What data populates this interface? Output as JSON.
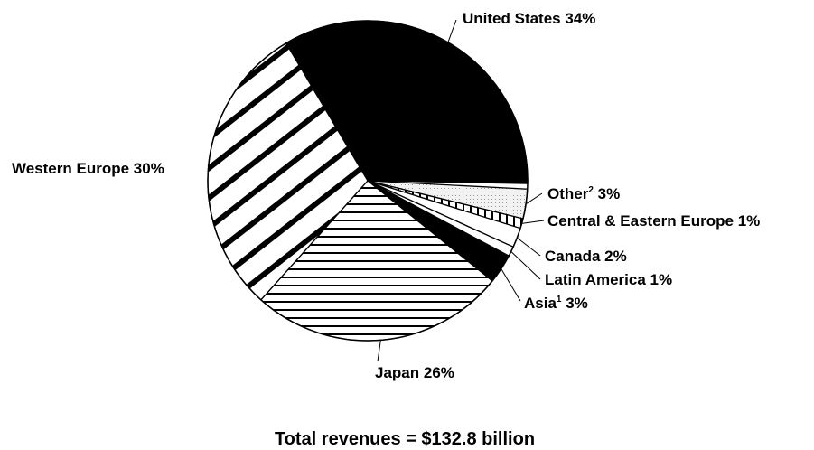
{
  "chart_data": {
    "type": "pie",
    "slices": [
      {
        "key": "us",
        "label": "United States",
        "value": 34,
        "value_label": "34%",
        "sup": "",
        "fill": "#000000",
        "pattern": "solid"
      },
      {
        "key": "other",
        "label": "Other",
        "value": 3,
        "value_label": "3%",
        "sup": "2",
        "fill": "#f4f4f4",
        "pattern": "dots"
      },
      {
        "key": "cee",
        "label": "Central & Eastern Europe",
        "value": 1,
        "value_label": "1%",
        "sup": "",
        "fill": "#ffffff",
        "pattern": "vertical"
      },
      {
        "key": "canada",
        "label": "Canada",
        "value": 2,
        "value_label": "2%",
        "sup": "",
        "fill": "#ffffff",
        "pattern": "blank"
      },
      {
        "key": "latam",
        "label": "Latin America",
        "value": 1,
        "value_label": "1%",
        "sup": "",
        "fill": "#ffffff",
        "pattern": "blank"
      },
      {
        "key": "asia",
        "label": "Asia",
        "value": 3,
        "value_label": "3%",
        "sup": "1",
        "fill": "#000000",
        "pattern": "solid"
      },
      {
        "key": "japan",
        "label": "Japan",
        "value": 26,
        "value_label": "26%",
        "sup": "",
        "fill": "#ffffff",
        "pattern": "horizontal"
      },
      {
        "key": "weurope",
        "label": "Western Europe",
        "value": 30,
        "value_label": "30%",
        "sup": "",
        "fill": "#ffffff",
        "pattern": "diagonal"
      }
    ],
    "caption": "Total revenues = $132.8 billion",
    "legend": "none"
  }
}
